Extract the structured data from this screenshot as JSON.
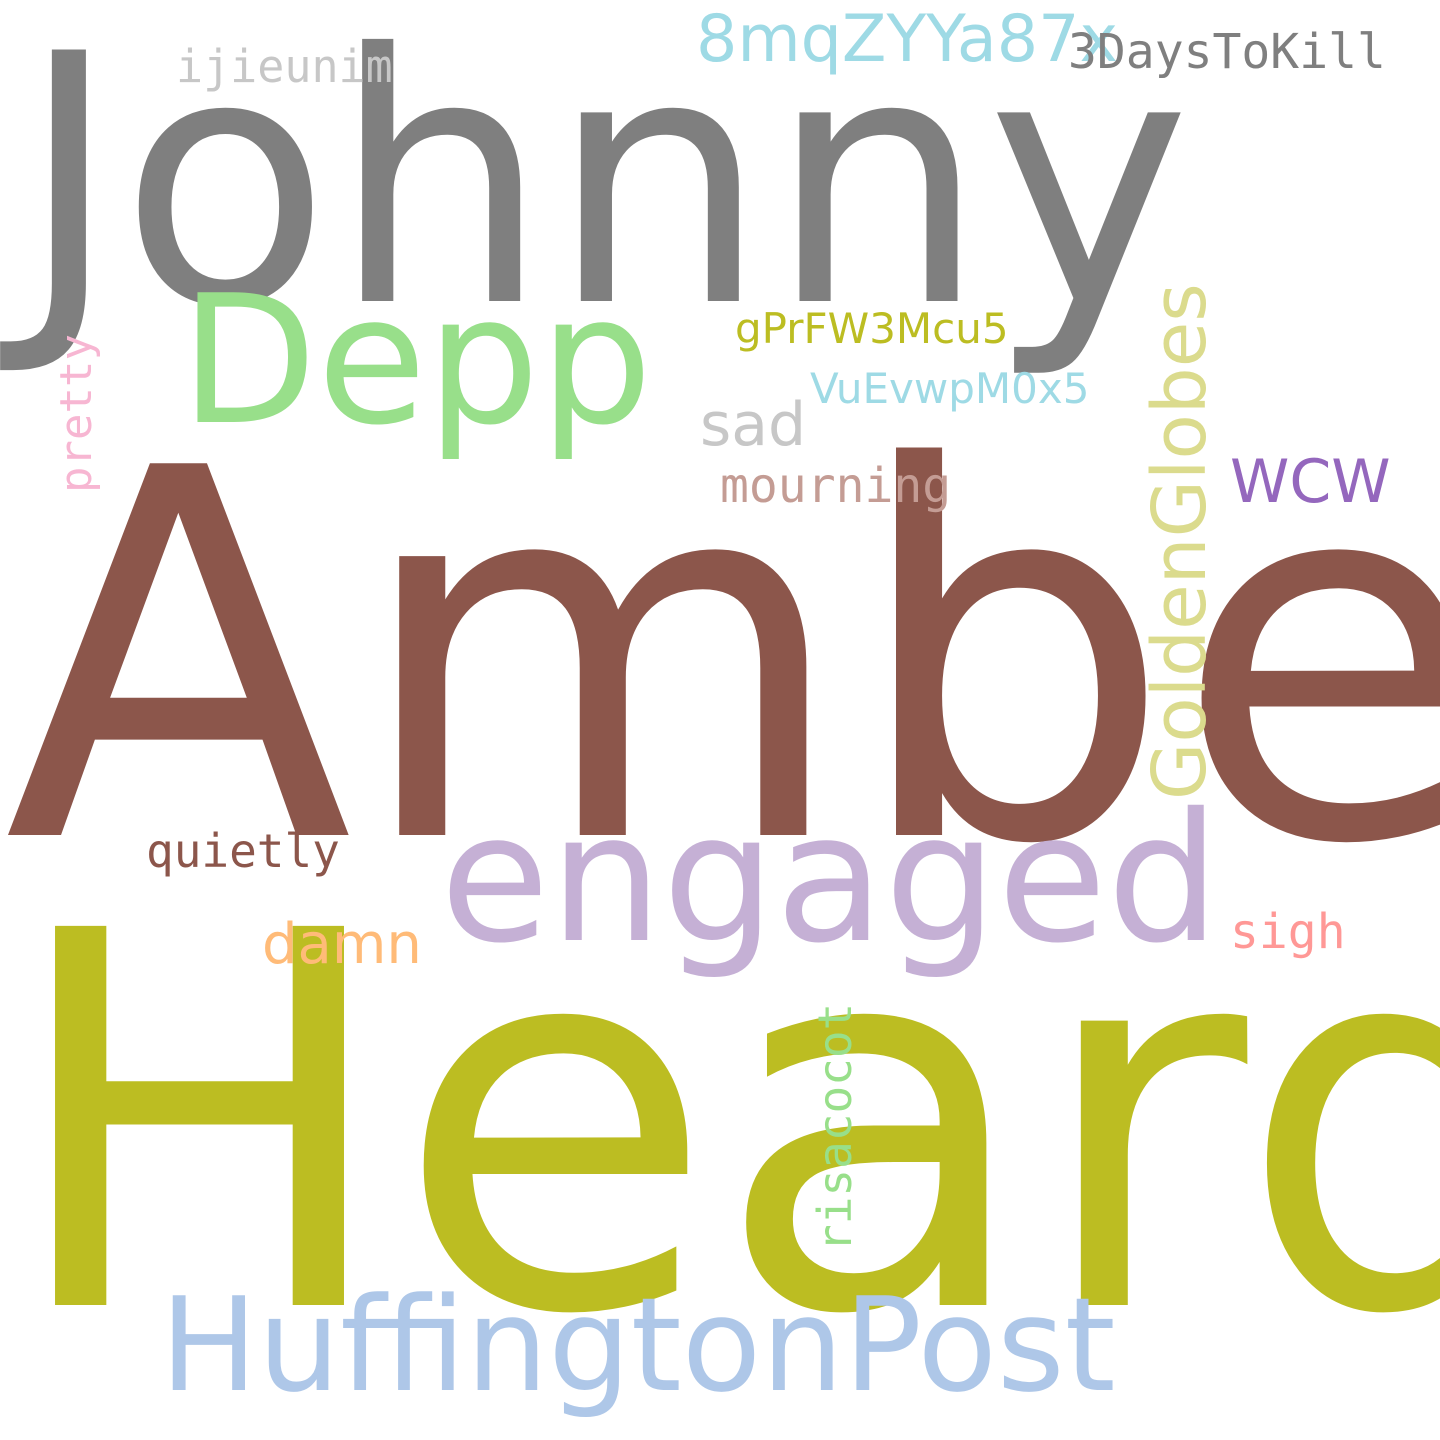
{
  "words": {
    "johnny": {
      "text": "Johnny",
      "color": "#7f7f7f"
    },
    "amber": {
      "text": "Amber",
      "color": "#8c564b"
    },
    "heard": {
      "text": "Heard",
      "color": "#bcbd22"
    },
    "depp": {
      "text": "Depp",
      "color": "#98df8a"
    },
    "engaged": {
      "text": "engaged",
      "color": "#c5b0d5"
    },
    "huffpost": {
      "text": "HuffingtonPost",
      "color": "#aec7e8"
    },
    "id_8mq": {
      "text": "8mqZYYa87x",
      "color": "#9edae5"
    },
    "threedays": {
      "text": "3DaysToKill",
      "color": "#7f7f7f"
    },
    "ijieunim": {
      "text": "ijieunim",
      "color": "#c7c7c7"
    },
    "goldenglobes": {
      "text": "GoldenGlobes",
      "color": "#dbdb8d"
    },
    "gprfw": {
      "text": "gPrFW3Mcu5",
      "color": "#bcbd22"
    },
    "vuev": {
      "text": "VuEvwpM0x5",
      "color": "#9edae5"
    },
    "sad": {
      "text": "sad",
      "color": "#c7c7c7"
    },
    "mourning": {
      "text": "mourning",
      "color": "#c49c94"
    },
    "wcw": {
      "text": "WCW",
      "color": "#9467bd"
    },
    "pretty": {
      "text": "pretty",
      "color": "#f7b6d2"
    },
    "quietly": {
      "text": "quietly",
      "color": "#8c564b"
    },
    "damn": {
      "text": "damn",
      "color": "#ffbb78"
    },
    "sigh": {
      "text": "sigh",
      "color": "#ff9896"
    },
    "risacocot": {
      "text": "risacocot",
      "color": "#98df8a"
    }
  }
}
